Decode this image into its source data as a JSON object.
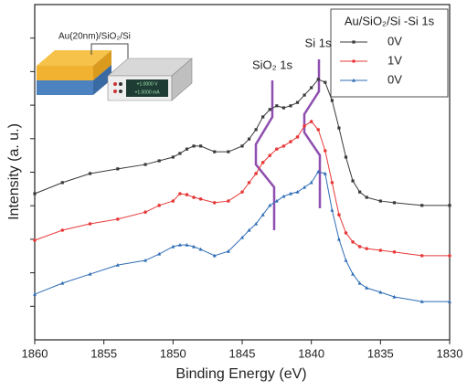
{
  "chart_data": {
    "type": "line",
    "x_label": "Binding Energy (eV)",
    "y_label": "Intensity (a. u.)",
    "legend_title": "Au/SiO₂/Si -Si 1s",
    "legend_position": "upper right",
    "annotations": [
      "SiO₂ 1s",
      "Si 1s"
    ],
    "inset_labels": [
      "Au(20nm)/SiO₂/Si",
      "+1.0000 V",
      "+1.0000 mA"
    ],
    "xlim": [
      1860,
      1830
    ],
    "xticks": [
      1860,
      1855,
      1850,
      1845,
      1840,
      1835,
      1830
    ],
    "ylim": [
      0,
      100
    ],
    "yticks": [
      10,
      20,
      30,
      40,
      50,
      60,
      70,
      80,
      90
    ],
    "x": [
      1860,
      1858,
      1856,
      1854,
      1852,
      1851,
      1850,
      1849.5,
      1849,
      1848.5,
      1848,
      1847,
      1846,
      1845,
      1844.5,
      1844,
      1843.5,
      1843,
      1842.5,
      1842,
      1841.5,
      1841,
      1840.5,
      1840,
      1839.5,
      1839,
      1838.5,
      1838,
      1837.5,
      1837,
      1836.5,
      1836,
      1835,
      1834,
      1832,
      1830
    ],
    "series": [
      {
        "name": "0V",
        "color": "#3a3a3a",
        "marker": "square",
        "values": [
          43.6,
          46.9,
          49.6,
          51.0,
          52.3,
          53.4,
          54.5,
          55.6,
          56.9,
          57.8,
          57.8,
          56.1,
          56.1,
          57.8,
          59.9,
          62.7,
          66.5,
          68.7,
          69.8,
          69.2,
          69.8,
          70.8,
          73.0,
          75.2,
          77.7,
          76.8,
          71.4,
          63.2,
          54.5,
          47.4,
          44.1,
          42.5,
          41.4,
          40.9,
          40.1,
          40.1
        ]
      },
      {
        "name": "1V",
        "color": "#e8393a",
        "marker": "circle",
        "values": [
          29.7,
          32.7,
          34.6,
          36.0,
          38.1,
          40.1,
          41.4,
          43.6,
          43.3,
          42.5,
          42.0,
          40.9,
          41.4,
          44.1,
          46.9,
          49.6,
          52.9,
          55.0,
          56.9,
          57.8,
          59.1,
          60.5,
          63.8,
          65.1,
          62.7,
          56.4,
          46.9,
          37.3,
          31.9,
          29.2,
          27.8,
          27.2,
          26.7,
          26.2,
          25.1,
          25.1
        ]
      },
      {
        "name": "0V",
        "color": "#2f6db5",
        "marker": "triangle",
        "values": [
          13.6,
          16.9,
          19.6,
          22.3,
          23.7,
          25.6,
          27.8,
          28.3,
          28.3,
          27.8,
          27.0,
          25.1,
          26.4,
          30.5,
          32.7,
          34.6,
          37.3,
          40.1,
          41.4,
          42.8,
          43.6,
          44.1,
          45.5,
          46.9,
          50.1,
          49.6,
          38.7,
          30.0,
          23.7,
          19.6,
          16.9,
          15.5,
          14.2,
          12.8,
          11.4,
          11.4
        ]
      }
    ]
  }
}
